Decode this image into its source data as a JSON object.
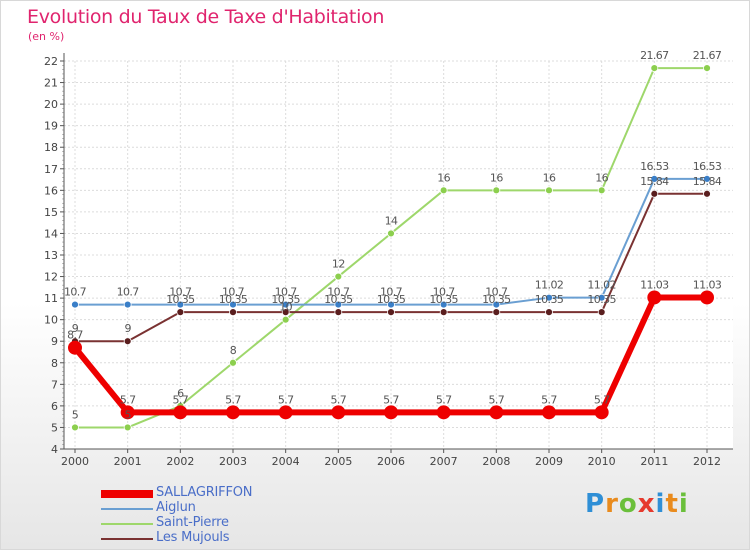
{
  "header": {
    "title": "Evolution du Taux de Taxe d'Habitation",
    "unit": "(en %)"
  },
  "logo": {
    "letters": [
      "P",
      "r",
      "o",
      "x",
      "i",
      "t",
      "i"
    ]
  },
  "chart_data": {
    "type": "line",
    "title": "Evolution du Taux de Taxe d'Habitation",
    "ylabel": "(en %)",
    "xlabel": "",
    "ylim": [
      4,
      22
    ],
    "yticks": [
      "4",
      "5",
      "6",
      "7",
      "8",
      "9",
      "10",
      "11",
      "12",
      "13",
      "14",
      "15",
      "16",
      "17",
      "18",
      "19",
      "20",
      "21",
      "22"
    ],
    "categories": [
      "2000",
      "2001",
      "2002",
      "2003",
      "2004",
      "2005",
      "2006",
      "2007",
      "2008",
      "2009",
      "2010",
      "2011",
      "2012"
    ],
    "grid": true,
    "series": [
      {
        "name": "SALLAGRIFFON",
        "color": "#ee0000",
        "values": [
          8.7,
          5.7,
          5.7,
          5.7,
          5.7,
          5.7,
          5.7,
          5.7,
          5.7,
          5.7,
          5.7,
          11.03,
          11.03
        ],
        "labels": [
          "8.7",
          "5.7",
          "5.7",
          "5.7",
          "5.7",
          "5.7",
          "5.7",
          "5.7",
          "5.7",
          "5.7",
          "5.7",
          "11.03",
          "11.03"
        ]
      },
      {
        "name": "Aiglun",
        "color": "#6a9fd2",
        "values": [
          10.7,
          10.7,
          10.7,
          10.7,
          10.7,
          10.7,
          10.7,
          10.7,
          10.7,
          11.02,
          11.02,
          16.53,
          16.53
        ],
        "labels": [
          "10.7",
          "10.7",
          "10.7",
          "10.7",
          "10.7",
          "10.7",
          "10.7",
          "10.7",
          "10.7",
          "11.02",
          "11.02",
          "16.53",
          "16.53"
        ]
      },
      {
        "name": "Saint-Pierre",
        "color": "#9ed76b",
        "values": [
          5,
          5,
          6,
          8,
          10,
          12,
          14,
          16,
          16,
          16,
          16,
          21.67,
          21.67
        ],
        "labels": [
          "5",
          "5",
          "6",
          "8",
          "10",
          "12",
          "14",
          "16",
          "16",
          "16",
          "16",
          "21.67",
          "21.67"
        ]
      },
      {
        "name": "Les Mujouls",
        "color": "#7a3232",
        "values": [
          9,
          9,
          10.35,
          10.35,
          10.35,
          10.35,
          10.35,
          10.35,
          10.35,
          10.35,
          10.35,
          15.84,
          15.84
        ],
        "labels": [
          "9",
          "9",
          "10.35",
          "10.35",
          "10.35",
          "10.35",
          "10.35",
          "10.35",
          "10.35",
          "10.35",
          "10.35",
          "15.84",
          "15.84"
        ]
      }
    ]
  }
}
